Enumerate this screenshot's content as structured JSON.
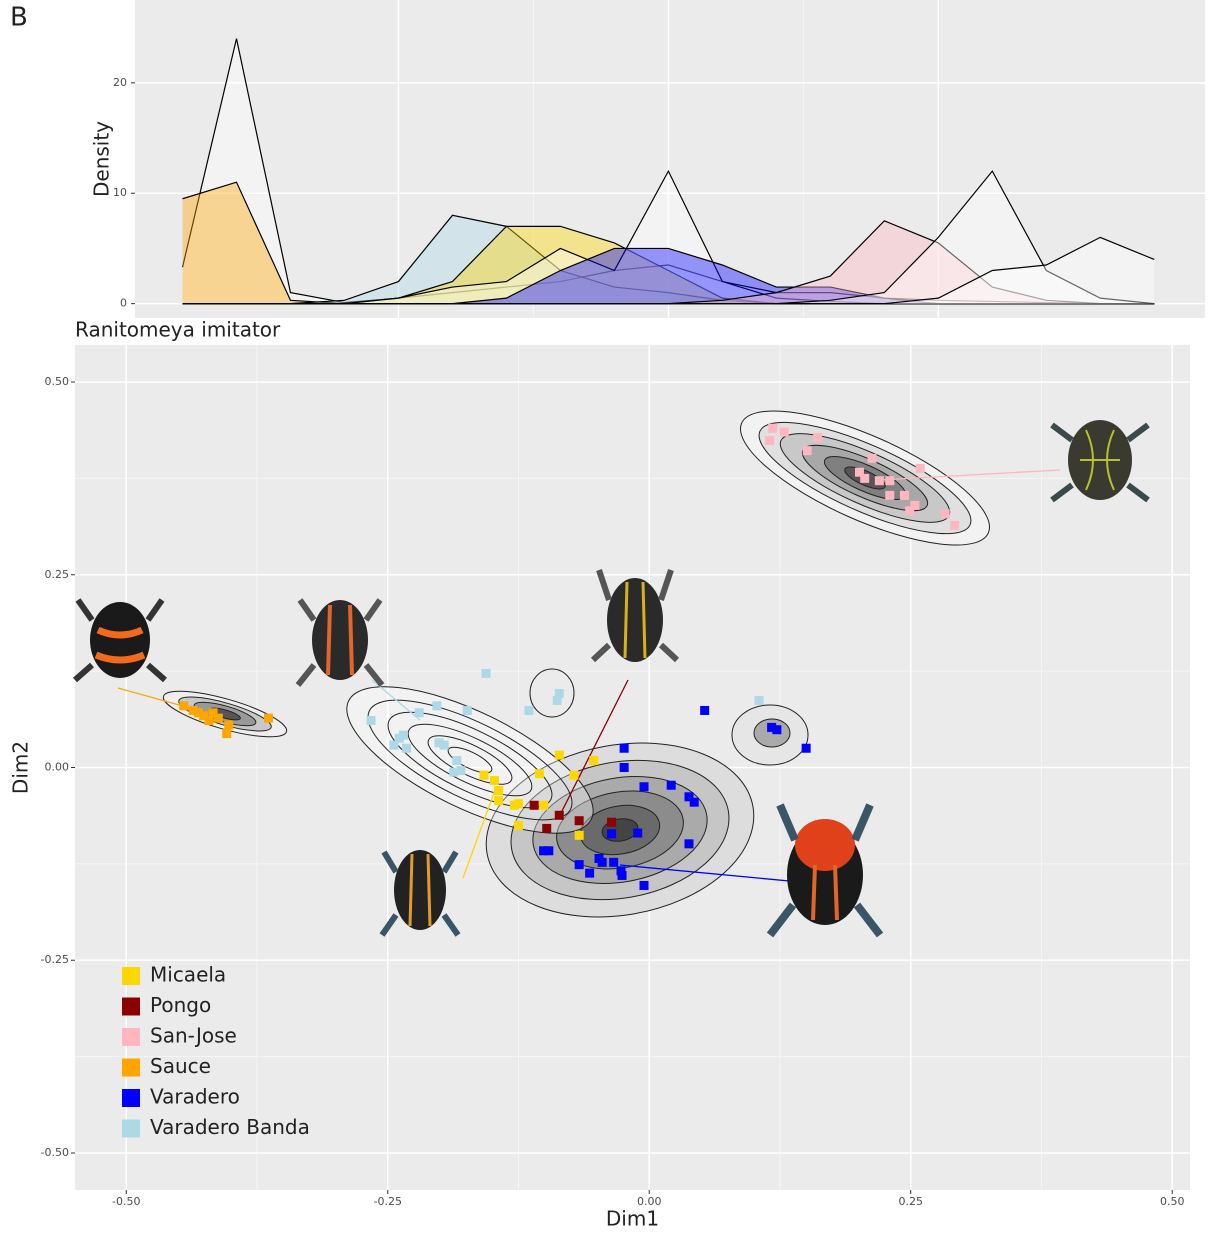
{
  "label": "B",
  "chart_data": [
    {
      "type": "area",
      "ylabel": "Density",
      "x": [
        -0.45,
        -0.4,
        -0.35,
        -0.3,
        -0.25,
        -0.2,
        -0.15,
        -0.1,
        -0.05,
        0.0,
        0.05,
        0.1,
        0.15,
        0.2,
        0.25,
        0.3,
        0.35,
        0.4,
        0.45
      ],
      "xlim": [
        -0.494,
        0.497
      ],
      "xticks": [
        -0.25,
        0,
        0.25
      ],
      "ylim": [
        -1.3,
        27.5
      ],
      "yticks": [
        0,
        10,
        20
      ],
      "grid": true,
      "series": [
        {
          "color": "#ffffff",
          "values": [
            3.3,
            24,
            1,
            0.1,
            0.5,
            1,
            1.5,
            2,
            3,
            3.5,
            2,
            1,
            1,
            0.5,
            0.3,
            0.2,
            0.1,
            0,
            0
          ]
        },
        {
          "name": "Sauce",
          "color": "#FFA500",
          "values": [
            9.5,
            11,
            0.3,
            0,
            0,
            0,
            0,
            0,
            0,
            0,
            0,
            0,
            0,
            0,
            0,
            0,
            0,
            0,
            0
          ]
        },
        {
          "name": "Varadero Banda",
          "color": "#ADD8E6",
          "values": [
            0,
            0,
            0,
            0.3,
            2,
            8,
            7,
            3,
            1.5,
            1,
            0.3,
            0,
            0,
            0,
            0,
            0,
            0,
            0,
            0
          ]
        },
        {
          "name": "Micaela",
          "color": "#FFD700",
          "values": [
            0,
            0,
            0,
            0,
            0.5,
            2,
            7,
            7,
            5.5,
            3,
            0.5,
            0,
            0,
            0,
            0,
            0,
            0,
            0,
            0
          ]
        },
        {
          "color": "#ffffff",
          "values": [
            0,
            0,
            0,
            0,
            0.5,
            1.5,
            2,
            5,
            3,
            12,
            2,
            0.5,
            0.2,
            0,
            0,
            0,
            0,
            0,
            0
          ]
        },
        {
          "name": "Varadero",
          "color": "#0000FF",
          "values": [
            0,
            0,
            0,
            0,
            0,
            0,
            0.5,
            3,
            5,
            5,
            3.5,
            1.5,
            1.5,
            0.5,
            0,
            0,
            0,
            0,
            0
          ]
        },
        {
          "name": "San-Jose",
          "color": "#FFB6C1",
          "values": [
            0,
            0,
            0,
            0,
            0,
            0,
            0,
            0,
            0,
            0,
            0.3,
            1,
            2.5,
            7.5,
            5.5,
            1.5,
            0.3,
            0,
            0
          ]
        },
        {
          "color": "#ffffff",
          "values": [
            0,
            0,
            0,
            0,
            0,
            0,
            0,
            0,
            0,
            0,
            0,
            0,
            0.3,
            1,
            6,
            12,
            3,
            0.5,
            0
          ]
        },
        {
          "color": "#ffffff",
          "values": [
            0,
            0,
            0,
            0,
            0,
            0,
            0,
            0,
            0,
            0,
            0,
            0,
            0,
            0,
            0.5,
            3,
            3.5,
            6,
            4
          ]
        }
      ]
    },
    {
      "type": "scatter",
      "title": "Ranitomeya imitator",
      "xlabel": "Dim1",
      "ylabel": "Dim2",
      "xlim": [
        -0.549,
        0.517
      ],
      "ylim": [
        -0.548,
        0.548
      ],
      "grid": true,
      "xticks": [
        {
          "value": -0.5,
          "label": "-0.50"
        },
        {
          "value": -0.25,
          "label": "-0.25"
        },
        {
          "value": 0,
          "label": "0.00"
        },
        {
          "value": 0.25,
          "label": "0.25"
        },
        {
          "value": 0.5,
          "label": "0.50"
        }
      ],
      "yticks": [
        {
          "value": -0.5,
          "label": "-0.50"
        },
        {
          "value": -0.25,
          "label": "-0.25"
        },
        {
          "value": 0,
          "label": "0.00"
        },
        {
          "value": 0.25,
          "label": "0.25"
        },
        {
          "value": 0.5,
          "label": "0.50"
        }
      ],
      "series": [
        {
          "name": "Micaela",
          "color": "#FFD700",
          "x": [
            -0.158,
            -0.148,
            -0.144,
            -0.129,
            -0.125,
            -0.105,
            -0.086,
            -0.072,
            -0.053,
            -0.125,
            -0.101,
            -0.067,
            -0.144
          ],
          "values": [
            -0.01,
            -0.017,
            -0.03,
            -0.049,
            -0.047,
            -0.008,
            0.016,
            -0.01,
            0.009,
            -0.075,
            -0.049,
            -0.088,
            -0.043
          ]
        },
        {
          "name": "Pongo",
          "color": "#8B0000",
          "x": [
            -0.098,
            -0.086,
            -0.067,
            -0.036,
            -0.11
          ],
          "values": [
            -0.079,
            -0.062,
            -0.069,
            -0.071,
            -0.049
          ]
        },
        {
          "name": "San-Jose",
          "color": "#FFB6C1",
          "x": [
            0.118,
            0.129,
            0.115,
            0.161,
            0.151,
            0.201,
            0.213,
            0.206,
            0.22,
            0.23,
            0.244,
            0.249,
            0.259,
            0.254,
            0.283,
            0.292,
            0.23
          ],
          "values": [
            0.44,
            0.435,
            0.424,
            0.428,
            0.411,
            0.383,
            0.401,
            0.375,
            0.372,
            0.372,
            0.353,
            0.333,
            0.388,
            0.34,
            0.329,
            0.314,
            0.353
          ]
        },
        {
          "name": "Sauce",
          "color": "#FFA500",
          "x": [
            -0.445,
            -0.436,
            -0.426,
            -0.421,
            -0.412,
            -0.402,
            -0.404,
            -0.431,
            -0.364,
            -0.417
          ],
          "values": [
            0.08,
            0.074,
            0.067,
            0.061,
            0.064,
            0.055,
            0.044,
            0.071,
            0.064,
            0.071
          ]
        },
        {
          "name": "Varadero",
          "color": "#0000FF",
          "x": [
            0.053,
            -0.024,
            -0.024,
            0.117,
            0.122,
            0.15,
            -0.005,
            0.021,
            0.038,
            0.043,
            0.038,
            -0.005,
            -0.096,
            -0.067,
            -0.048,
            -0.045,
            -0.057,
            -0.034,
            -0.027,
            -0.026,
            -0.011,
            -0.036,
            -0.101
          ],
          "values": [
            0.074,
            0.025,
            0.0,
            0.052,
            0.049,
            0.025,
            -0.025,
            -0.023,
            -0.038,
            -0.045,
            -0.099,
            -0.153,
            -0.108,
            -0.126,
            -0.118,
            -0.123,
            -0.137,
            -0.123,
            -0.134,
            -0.14,
            -0.085,
            -0.086,
            -0.108
          ]
        },
        {
          "name": "Varadero Banda",
          "color": "#ADD8E6",
          "x": [
            -0.156,
            -0.266,
            -0.244,
            -0.235,
            -0.22,
            -0.203,
            -0.201,
            -0.196,
            -0.184,
            -0.18,
            -0.187,
            -0.174,
            -0.115,
            -0.086,
            -0.088,
            0.105,
            -0.232,
            -0.239
          ],
          "values": [
            0.122,
            0.061,
            0.029,
            0.042,
            0.071,
            0.08,
            0.032,
            0.029,
            0.009,
            -0.004,
            -0.006,
            0.074,
            0.074,
            0.096,
            0.087,
            0.087,
            0.025,
            0.038
          ]
        }
      ]
    }
  ]
}
